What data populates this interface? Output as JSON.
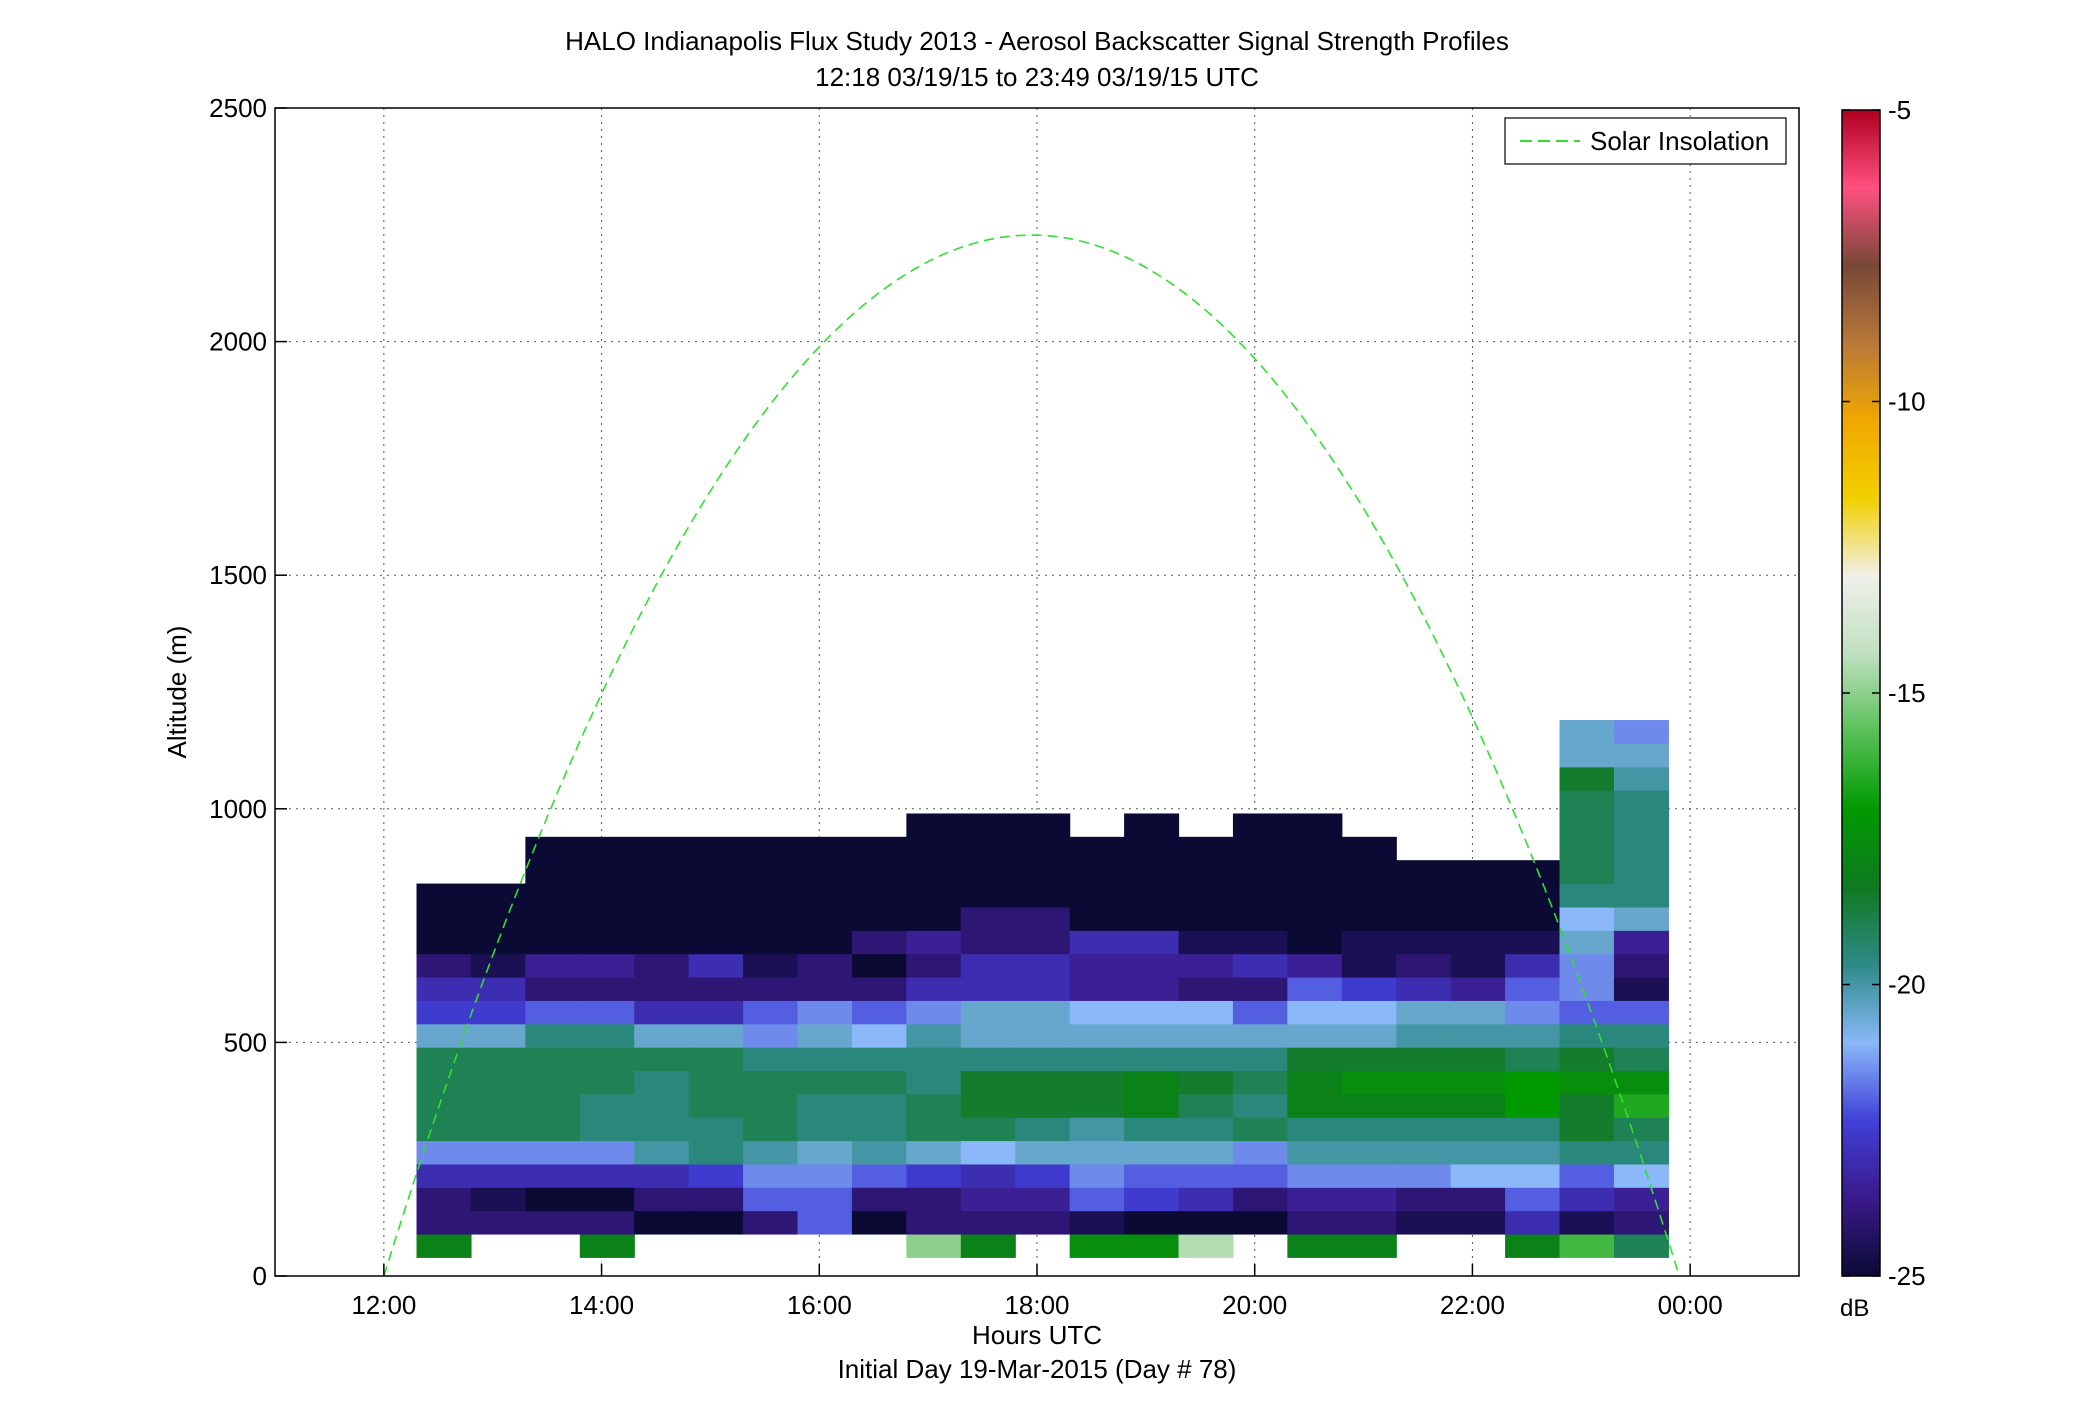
{
  "chart_data": {
    "type": "heatmap",
    "title": "HALO Indianapolis Flux Study 2013 - Aerosol Backscatter Signal Strength Profiles",
    "subtitle": "12:18 03/19/15 to 23:49 03/19/15  UTC",
    "xlabel": "Hours UTC",
    "xlabel2": "Initial Day 19-Mar-2015 (Day # 78)",
    "ylabel": "Altitude (m)",
    "x_ticks": [
      "12:00",
      "14:00",
      "16:00",
      "18:00",
      "20:00",
      "22:00",
      "00:00"
    ],
    "y_ticks": [
      "0",
      "500",
      "1000",
      "1500",
      "2000",
      "2500"
    ],
    "xlim_hours": [
      11,
      25
    ],
    "ylim": [
      0,
      2500
    ],
    "grid": true,
    "legend": {
      "position": "top-right",
      "entries": [
        "Solar Insolation"
      ],
      "line_color": "#33dd33"
    },
    "colorbar": {
      "label": "dB",
      "range": [
        -25,
        -5
      ],
      "ticks": [
        "-5",
        "-10",
        "-15",
        "-20",
        "-25"
      ],
      "ramp_colors": [
        "#0a0a35",
        "#3a1a8a",
        "#4040d8",
        "#8ab8f8",
        "#2d8a88",
        "#0f7a20",
        "#009a00",
        "#58c058",
        "#c0e0c0",
        "#f0f0ea",
        "#f2d000",
        "#f0a800",
        "#b87838",
        "#784838",
        "#ff5080",
        "#b00020"
      ]
    },
    "row_altitudes_m": [
      65,
      115,
      165,
      215,
      265,
      315,
      365,
      415,
      465,
      515,
      565,
      615,
      665,
      715,
      765,
      815,
      865,
      915,
      965,
      1015,
      1065,
      1115,
      1165,
      1215,
      1265,
      1315,
      1365,
      1415,
      1465,
      1515,
      1565,
      1615,
      1665,
      1715,
      1765,
      1815,
      1865,
      1915,
      1965,
      2015,
      2065,
      2115,
      2165,
      2215,
      2265,
      2315,
      2365,
      2415,
      2465
    ],
    "columns": [
      {
        "t": "12:33",
        "profile": [
          -18,
          -24,
          -24,
          -23,
          -21.5,
          -19,
          -19,
          -19,
          -19,
          -20.5,
          -22.5,
          -23,
          -24,
          -25,
          -25,
          -25
        ]
      },
      {
        "t": "13:03",
        "profile": [
          null,
          -24,
          -24.5,
          -23,
          -21.5,
          -19,
          -19,
          -19,
          -19,
          -20.5,
          -22.5,
          -23,
          -24.5,
          -25,
          -25,
          -25
        ]
      },
      {
        "t": "13:33",
        "profile": [
          null,
          -24,
          -25,
          -23,
          -21.5,
          -19,
          -19,
          -19,
          -19,
          -19.5,
          -22,
          -24,
          -23.5,
          -25,
          -25,
          -25,
          -25,
          -25
        ]
      },
      {
        "t": "14:03",
        "profile": [
          -18,
          -24,
          -25,
          -23,
          -21.5,
          -19.5,
          -19.5,
          -19,
          -19,
          -19.5,
          -22,
          -24,
          -23.5,
          -25,
          -25,
          -25,
          -25,
          -25
        ]
      },
      {
        "t": "14:33",
        "profile": [
          null,
          -25,
          -24,
          -23,
          -20,
          -19.5,
          -19.5,
          -19.5,
          -19,
          -20.5,
          -23,
          -24,
          -24,
          -25,
          -25,
          -25,
          -25,
          -25
        ]
      },
      {
        "t": "15:03",
        "profile": [
          null,
          -25,
          -24,
          -22.5,
          -19.5,
          -19.5,
          -19,
          -19,
          -19,
          -20.5,
          -23,
          -24,
          -23,
          -25,
          -25,
          -25,
          -25,
          -25
        ]
      },
      {
        "t": "15:33",
        "profile": [
          null,
          -24,
          -22,
          -21.5,
          -20,
          -19,
          -19,
          -19,
          -19.5,
          -21.5,
          -22,
          -24,
          -24.5,
          -25,
          -25,
          -25,
          -25,
          -25
        ]
      },
      {
        "t": "16:03",
        "profile": [
          null,
          -22,
          -22,
          -21.5,
          -20.5,
          -19.5,
          -19.5,
          -19,
          -19.5,
          -20.5,
          -21.5,
          -24,
          -24,
          -25,
          -25,
          -25,
          -25,
          -25
        ]
      },
      {
        "t": "16:33",
        "profile": [
          null,
          -25,
          -24,
          -22,
          -20,
          -19.5,
          -19.5,
          -19,
          -19.5,
          -21,
          -22,
          -24,
          -25,
          -24,
          -25,
          -25,
          -25,
          -25
        ]
      },
      {
        "t": "17:03",
        "profile": [
          -15,
          -24,
          -24,
          -22.5,
          -20.5,
          -19,
          -19,
          -19.5,
          -19.5,
          -20,
          -21.5,
          -23,
          -24,
          -23.5,
          -25,
          -25,
          -25,
          -25,
          -25
        ]
      },
      {
        "t": "17:33",
        "profile": [
          -18,
          -24,
          -23.5,
          -23,
          -21,
          -19,
          -18.5,
          -18.5,
          -19.5,
          -20.5,
          -20.5,
          -23,
          -23,
          -24,
          -24,
          -25,
          -25,
          -25,
          -25
        ]
      },
      {
        "t": "18:03",
        "profile": [
          null,
          -24,
          -23.5,
          -22.5,
          -20.5,
          -19.5,
          -18.5,
          -18.5,
          -19.5,
          -20.5,
          -20.5,
          -23,
          -23,
          -24,
          -24,
          -25,
          -25,
          -25,
          -25
        ]
      },
      {
        "t": "18:33",
        "profile": [
          -17.5,
          -24.5,
          -22,
          -21.5,
          -20.5,
          -20,
          -18.5,
          -18.5,
          -19.5,
          -20.5,
          -21,
          -23.5,
          -23.5,
          -23,
          -25,
          -25,
          -25,
          -25
        ]
      },
      {
        "t": "19:03",
        "profile": [
          -17.5,
          -25,
          -22.5,
          -22,
          -20.5,
          -19.5,
          -18,
          -18,
          -19.5,
          -20.5,
          -21,
          -23.5,
          -23.5,
          -23,
          -25,
          -25,
          -25,
          -25,
          -25
        ]
      },
      {
        "t": "19:33",
        "profile": [
          -14.5,
          -25,
          -23,
          -22,
          -20.5,
          -19.5,
          -19,
          -18.5,
          -19.5,
          -20.5,
          -21,
          -24,
          -23.5,
          -24.5,
          -25,
          -25,
          -25,
          -25
        ]
      },
      {
        "t": "20:03",
        "profile": [
          null,
          -25,
          -24,
          -22,
          -21.5,
          -19,
          -19.5,
          -19,
          -19.5,
          -20.5,
          -22,
          -24,
          -23,
          -24.5,
          -25,
          -25,
          -25,
          -25,
          -25
        ]
      },
      {
        "t": "20:33",
        "profile": [
          -18,
          -24,
          -23.5,
          -21.5,
          -20,
          -19.5,
          -18,
          -18,
          -18.5,
          -20.5,
          -21,
          -22,
          -23.5,
          -25,
          -25,
          -25,
          -25,
          -25,
          -25
        ]
      },
      {
        "t": "21:03",
        "profile": [
          -18,
          -24,
          -23.5,
          -21.5,
          -20,
          -19.5,
          -18,
          -17.5,
          -18.5,
          -20.5,
          -21,
          -22.5,
          -24.5,
          -24.5,
          -25,
          -25,
          -25,
          -25
        ]
      },
      {
        "t": "21:33",
        "profile": [
          null,
          -24.5,
          -24,
          -21.5,
          -20,
          -19.5,
          -18,
          -17.5,
          -18.5,
          -20,
          -20.5,
          -23,
          -24,
          -24.5,
          -25,
          -25,
          -25
        ]
      },
      {
        "t": "22:03",
        "profile": [
          null,
          -24.5,
          -24,
          -21,
          -20,
          -19.5,
          -18,
          -17.5,
          -18.5,
          -20,
          -20.5,
          -23.5,
          -24.5,
          -24.5,
          -25,
          -25,
          -25
        ]
      },
      {
        "t": "22:33",
        "profile": [
          -18,
          -23,
          -22,
          -21,
          -20,
          -19.5,
          -17,
          -17,
          -19,
          -20,
          -21.5,
          -22,
          -23,
          -24.5,
          -25,
          -25,
          -25
        ]
      },
      {
        "t": "23:03",
        "profile": [
          -16,
          -24.5,
          -23,
          -22,
          -19.5,
          -18.5,
          -18.5,
          -17.5,
          -18.5,
          -19.5,
          -22,
          -21.5,
          -21.5,
          -20.5,
          -21,
          -19.5,
          -19,
          -19,
          -19,
          -19,
          -18.5,
          -20.5,
          -20.5
        ]
      },
      {
        "t": "23:33",
        "profile": [
          -19,
          -24,
          -23.5,
          -21,
          -19.5,
          -19,
          -16.5,
          -17.5,
          -19,
          -19.5,
          -22,
          -24.5,
          -24,
          -23.5,
          -20.5,
          -19.5,
          -19.5,
          -19.5,
          -19.5,
          -19.5,
          -20,
          -20.5,
          -21.5
        ]
      }
    ]
  }
}
